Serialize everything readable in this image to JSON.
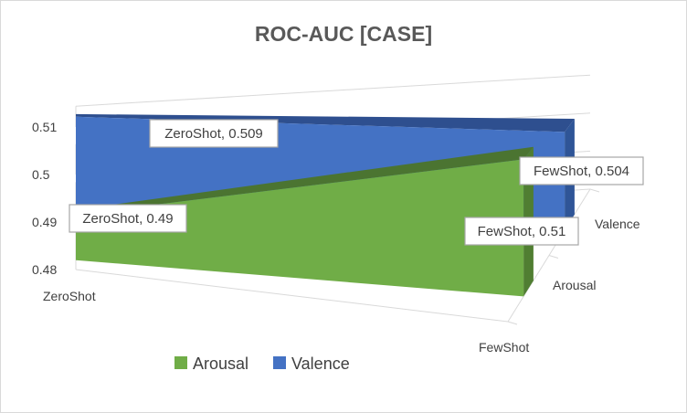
{
  "chart_data": {
    "type": "area",
    "subtype": "3d-area",
    "title": "ROC-AUC [CASE]",
    "categories": [
      "ZeroShot",
      "FewShot"
    ],
    "depth_categories": [
      "Arousal",
      "Valence"
    ],
    "series": [
      {
        "name": "Arousal",
        "values": [
          0.49,
          0.51
        ],
        "color": "#70ad47",
        "side_color": "#507e32",
        "top_color": "#4b7431"
      },
      {
        "name": "Valence",
        "values": [
          0.509,
          0.504
        ],
        "color": "#4472c4",
        "side_color": "#2f5597",
        "top_color": "#2e4f8f"
      }
    ],
    "data_labels": [
      {
        "series": "Valence",
        "category": "ZeroShot",
        "text": "ZeroShot, 0.509"
      },
      {
        "series": "Valence",
        "category": "FewShot",
        "text": "FewShot, 0.504"
      },
      {
        "series": "Arousal",
        "category": "ZeroShot",
        "text": "ZeroShot, 0.49"
      },
      {
        "series": "Arousal",
        "category": "FewShot",
        "text": "FewShot, 0.51"
      }
    ],
    "yticks": [
      "0.48",
      "0.49",
      "0.5",
      "0.51"
    ],
    "ylim": [
      0.48,
      0.515
    ],
    "legend_position": "bottom",
    "grid": true
  }
}
